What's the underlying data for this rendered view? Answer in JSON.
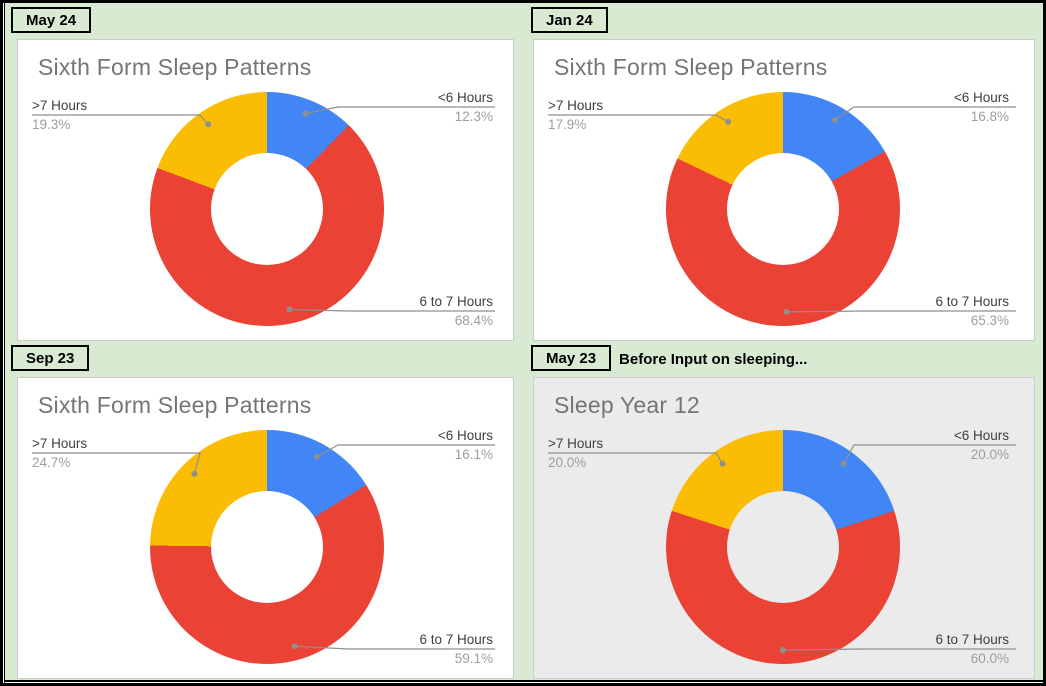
{
  "page": {
    "background": "#d9ead3",
    "outer_border": "#000000",
    "card_border": "#cccccc",
    "leader_line_color": "#8f8f8f",
    "label_text_color": "#3c4043",
    "pct_text_color": "#9e9e9e",
    "title_text_color": "#757575"
  },
  "chart_data": [
    {
      "type": "pie",
      "donut": true,
      "tab": "May 24",
      "title": "Sixth Form Sleep Patterns",
      "bg": "#ffffff",
      "legend_position": "labeled",
      "slices": [
        {
          "label": "<6 Hours",
          "value": 12.3,
          "pct_text": "12.3%",
          "color": "#4285F4"
        },
        {
          "label": "6 to 7 Hours",
          "value": 68.4,
          "pct_text": "68.4%",
          "color": "#EA4335"
        },
        {
          "label": ">7 Hours",
          "value": 19.3,
          "pct_text": "19.3%",
          "color": "#FBBC04"
        }
      ]
    },
    {
      "type": "pie",
      "donut": true,
      "tab": "Jan 24",
      "title": "Sixth Form Sleep Patterns",
      "bg": "#ffffff",
      "legend_position": "labeled",
      "slices": [
        {
          "label": "<6 Hours",
          "value": 16.8,
          "pct_text": "16.8%",
          "color": "#4285F4"
        },
        {
          "label": "6 to 7 Hours",
          "value": 65.3,
          "pct_text": "65.3%",
          "color": "#EA4335"
        },
        {
          "label": ">7 Hours",
          "value": 17.9,
          "pct_text": "17.9%",
          "color": "#FBBC04"
        }
      ]
    },
    {
      "type": "pie",
      "donut": true,
      "tab": "Sep 23",
      "title": "Sixth Form Sleep Patterns",
      "bg": "#ffffff",
      "legend_position": "labeled",
      "slices": [
        {
          "label": "<6 Hours",
          "value": 16.1,
          "pct_text": "16.1%",
          "color": "#4285F4"
        },
        {
          "label": "6 to 7 Hours",
          "value": 59.1,
          "pct_text": "59.1%",
          "color": "#EA4335"
        },
        {
          "label": ">7 Hours",
          "value": 24.7,
          "pct_text": "24.7%",
          "color": "#FBBC04"
        }
      ]
    },
    {
      "type": "pie",
      "donut": true,
      "tab": "May 23",
      "note": "Before Input on sleeping...",
      "title": "Sleep Year 12",
      "bg": "#ebebeb",
      "legend_position": "labeled",
      "slices": [
        {
          "label": "<6 Hours",
          "value": 20.0,
          "pct_text": "20.0%",
          "color": "#4285F4"
        },
        {
          "label": "6 to 7 Hours",
          "value": 60.0,
          "pct_text": "60.0%",
          "color": "#EA4335"
        },
        {
          "label": ">7 Hours",
          "value": 20.0,
          "pct_text": "20.0%",
          "color": "#FBBC04"
        }
      ]
    }
  ]
}
